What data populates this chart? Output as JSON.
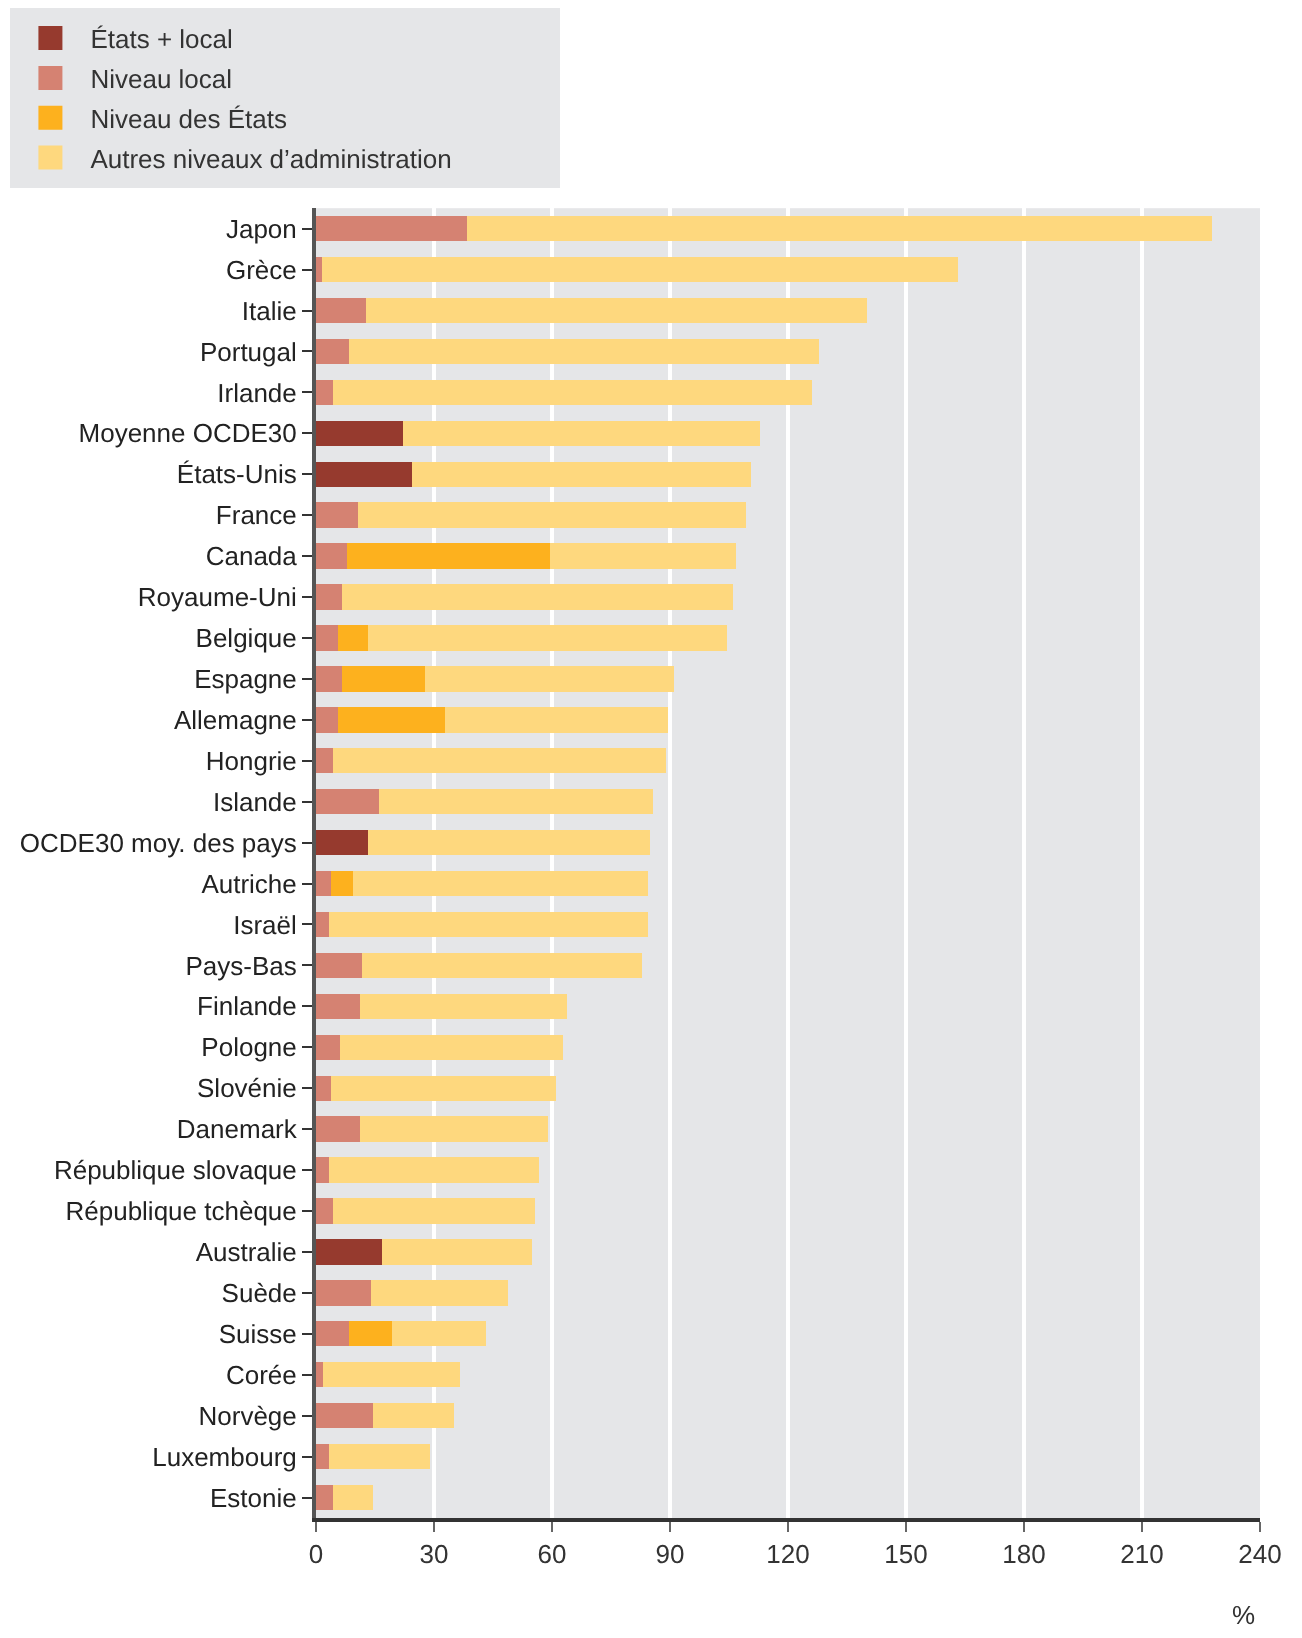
{
  "chart_data": {
    "type": "bar",
    "orientation": "horizontal",
    "stacked": true,
    "xlabel": "%",
    "categories": [
      "Japon",
      "Grèce",
      "Italie",
      "Portugal",
      "Irlande",
      "Moyenne OCDE30",
      "États-Unis",
      "France",
      "Canada",
      "Royaume-Uni",
      "Belgique",
      "Espagne",
      "Allemagne",
      "Hongrie",
      "Islande",
      "OCDE30 moy. des pays",
      "Autriche",
      "Israël",
      "Pays-Bas",
      "Finlande",
      "Pologne",
      "Slovénie",
      "Danemark",
      "République slovaque",
      "République tchèque",
      "Australie",
      "Suède",
      "Suisse",
      "Corée",
      "Norvège",
      "Luxembourg",
      "Estonie"
    ],
    "series": [
      {
        "name": "États + local",
        "color": "#963a2e",
        "values": [
          0,
          0,
          0,
          0,
          0,
          22.2,
          24.4,
          0,
          0,
          0,
          0,
          0,
          0,
          0,
          0,
          13.3,
          0,
          0,
          0,
          0,
          0,
          0,
          0,
          0,
          0,
          16.7,
          0,
          0,
          0,
          0,
          0,
          0
        ]
      },
      {
        "name": "Niveau local",
        "color": "#d58272",
        "values": [
          38.3,
          1.5,
          12.8,
          8.3,
          4.4,
          0,
          0,
          10.6,
          7.8,
          6.7,
          5.6,
          6.7,
          5.6,
          4.4,
          16.1,
          0,
          3.9,
          3.3,
          11.7,
          11.1,
          6.1,
          3.9,
          11.1,
          3.3,
          4.4,
          0,
          13.9,
          8.3,
          1.7,
          14.4,
          3.3,
          4.4
        ]
      },
      {
        "name": "Niveau des États",
        "color": "#fdb11e",
        "values": [
          0,
          0,
          0,
          0,
          0,
          0,
          0,
          0,
          51.6,
          0,
          7.7,
          21.1,
          27.2,
          0,
          0,
          0,
          5.5,
          0,
          0,
          0,
          0,
          0,
          0,
          0,
          0,
          0,
          0,
          11.1,
          0,
          0,
          0,
          0
        ]
      },
      {
        "name": "Autres niveaux d’administration",
        "color": "#fed87e",
        "values": [
          189.5,
          161.8,
          127.2,
          119.5,
          121.7,
          90.6,
          86.2,
          98.8,
          47.3,
          99.4,
          91.1,
          63.3,
          56.6,
          84.5,
          69.5,
          71.7,
          75,
          81.1,
          71.1,
          52.8,
          56.7,
          57.2,
          47.8,
          53.4,
          51.2,
          38.3,
          35,
          23.9,
          35,
          20.6,
          25.6,
          10
        ]
      }
    ],
    "xlim": [
      0,
      240
    ],
    "xticks": [
      0,
      30,
      60,
      90,
      120,
      150,
      180,
      210,
      240
    ],
    "grid": "x",
    "legend": "top"
  }
}
